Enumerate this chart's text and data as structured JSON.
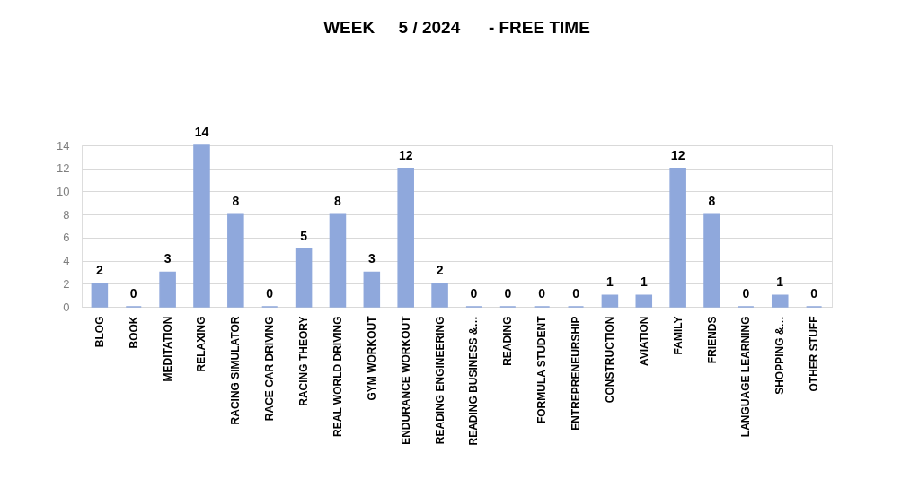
{
  "chart_data": {
    "type": "bar",
    "title": "WEEK     5 / 2024      - FREE TIME",
    "categories": [
      "BLOG",
      "BOOK",
      "MEDITATION",
      "RELAXING",
      "RACING SIMULATOR",
      "RACE CAR DRIVING",
      "RACING THEORY",
      "REAL WORLD DRIVING",
      "GYM WORKOUT",
      "ENDURANCE WORKOUT",
      "READING ENGINEERING",
      "READING BUSINESS &…",
      "READING",
      "FORMULA STUDENT",
      "ENTREPRENEURSHIP",
      "CONSTRUCTION",
      "AVIATION",
      "FAMILY",
      "FRIENDS",
      "LANGUAGE LEARNING",
      "SHOPPING &…",
      "OTHER STUFF"
    ],
    "values": [
      2,
      0,
      3,
      14,
      8,
      0,
      5,
      8,
      3,
      12,
      2,
      0,
      0,
      0,
      0,
      1,
      1,
      12,
      8,
      0,
      1,
      0
    ],
    "color": "#8fa8dc",
    "ylim": [
      0,
      14
    ],
    "yticks": [
      0,
      2,
      4,
      6,
      8,
      10,
      12,
      14
    ],
    "grid": "y",
    "data_labels": true
  }
}
